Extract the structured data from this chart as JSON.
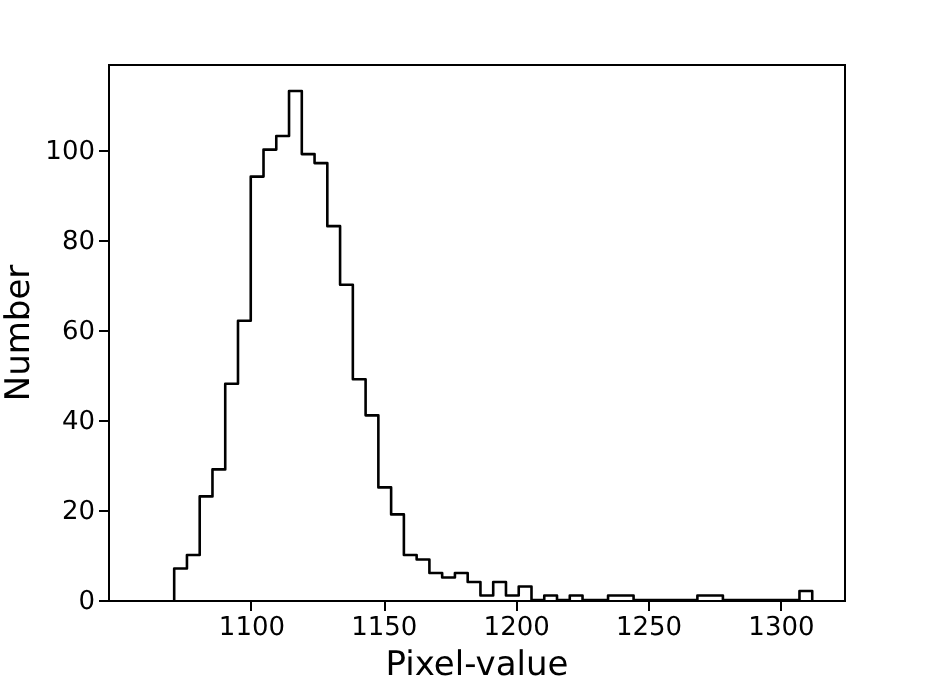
{
  "chart_data": {
    "type": "histogram",
    "xlabel": "Pixel-value",
    "ylabel": "Number",
    "bins": [
      1071.0,
      1075.82,
      1080.64,
      1085.46,
      1090.28,
      1095.1,
      1099.92,
      1104.74,
      1109.56,
      1114.38,
      1119.2,
      1124.02,
      1128.84,
      1133.66,
      1138.48,
      1143.3,
      1148.12,
      1152.94,
      1157.76,
      1162.58,
      1167.4,
      1172.22,
      1177.04,
      1181.86,
      1186.68,
      1191.5,
      1196.32,
      1201.14,
      1205.96,
      1210.78,
      1215.6,
      1220.42,
      1225.24,
      1230.06,
      1234.88,
      1239.7,
      1244.52,
      1249.34,
      1254.16,
      1258.98,
      1263.8,
      1268.62,
      1273.44,
      1278.26,
      1283.08,
      1287.9,
      1292.72,
      1297.54,
      1302.36,
      1307.18,
      1312.0
    ],
    "values": [
      7,
      10,
      23,
      29,
      48,
      62,
      94,
      100,
      103,
      113,
      99,
      97,
      83,
      70,
      49,
      41,
      25,
      19,
      10,
      9,
      6,
      5,
      6,
      4,
      1,
      4,
      1,
      3,
      0,
      1,
      0,
      1,
      0,
      0,
      1,
      1,
      0,
      0,
      0,
      0,
      0,
      1,
      1,
      0,
      0,
      0,
      0,
      0,
      0,
      2
    ],
    "color": "#000000",
    "xlim": [
      1046,
      1324
    ],
    "ylim": [
      0,
      119
    ],
    "xticks": [
      1100,
      1150,
      1200,
      1250,
      1300
    ],
    "yticks": [
      0,
      20,
      40,
      60,
      80,
      100
    ],
    "grid": false
  }
}
